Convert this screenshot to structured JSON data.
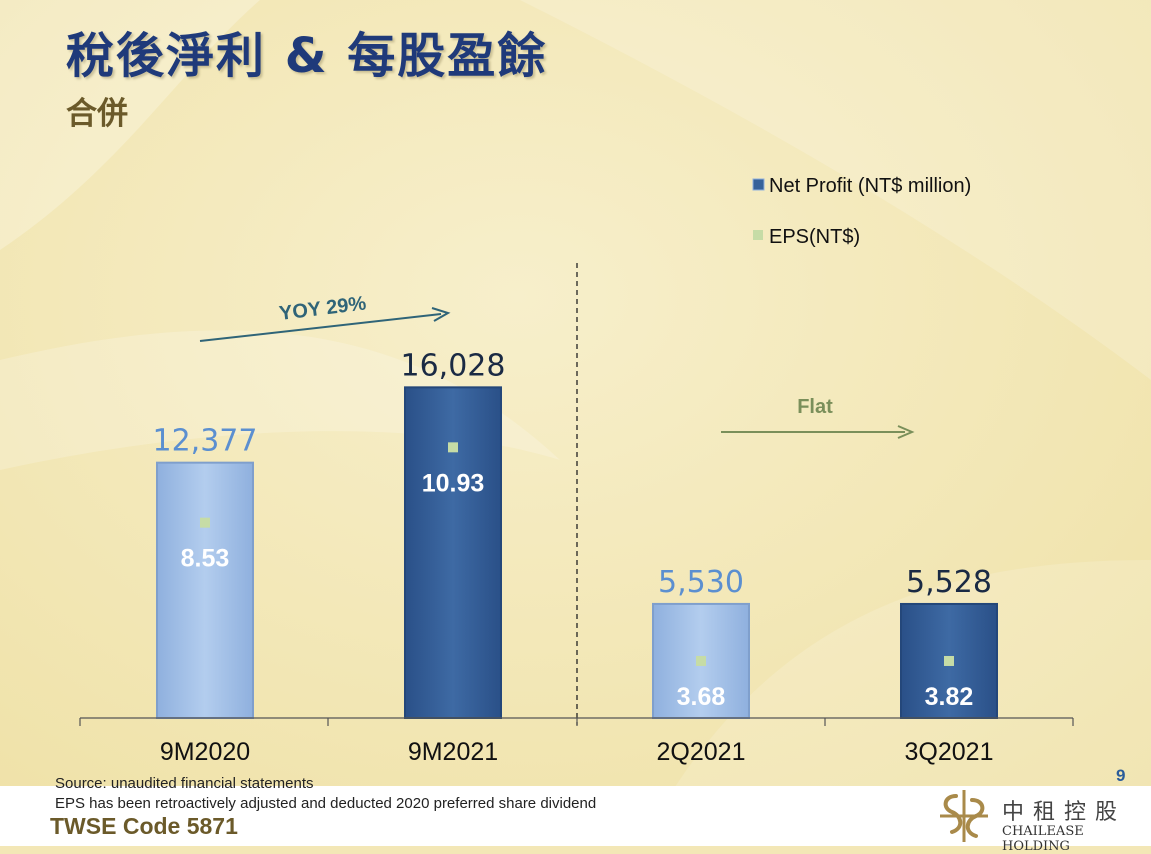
{
  "slide": {
    "title": "稅後淨利 & 每股盈餘",
    "subtitle": "合併",
    "page_number": "9"
  },
  "footer": {
    "source": "Source: unaudited financial statements",
    "eps_note": "EPS has been retroactively adjusted and deducted 2020 preferred share dividend",
    "twse_code": "TWSE Code 5871"
  },
  "logo": {
    "name_cn": "中租控股",
    "name_en": "CHAILEASE HOLDING"
  },
  "colors": {
    "light_bar": "#a6c3e8",
    "dark_bar": "#36629a",
    "eps_marker": "#c6dca6",
    "yoy_arrow": "#2f6478",
    "flat_arrow": "#7a8f5a"
  },
  "chart_data": {
    "type": "bar",
    "categories": [
      "9M2020",
      "9M2021",
      "2Q2021",
      "3Q2021"
    ],
    "series": [
      {
        "name": "Net Profit (NT$ million)",
        "values": [
          12377,
          16028,
          5530,
          5528
        ],
        "value_labels": [
          "12,377",
          "16,028",
          "5,530",
          "5,528"
        ]
      },
      {
        "name": "EPS(NT$)",
        "values": [
          8.53,
          10.93,
          3.68,
          3.82
        ],
        "value_labels": [
          "8.53",
          "10.93",
          "3.68",
          "3.82"
        ]
      }
    ],
    "bar_styles": [
      "light",
      "dark",
      "light",
      "dark"
    ],
    "legend": [
      "Net Profit (NT$ million)",
      "EPS(NT$)"
    ],
    "annotations": [
      {
        "text": "YOY 29%",
        "from_category": "9M2020",
        "to_category": "9M2021"
      },
      {
        "text": "Flat",
        "from_category": "2Q2021",
        "to_category": "3Q2021"
      }
    ],
    "ylim": [
      0,
      18000
    ],
    "grid": false,
    "legend_position": "top-right"
  }
}
